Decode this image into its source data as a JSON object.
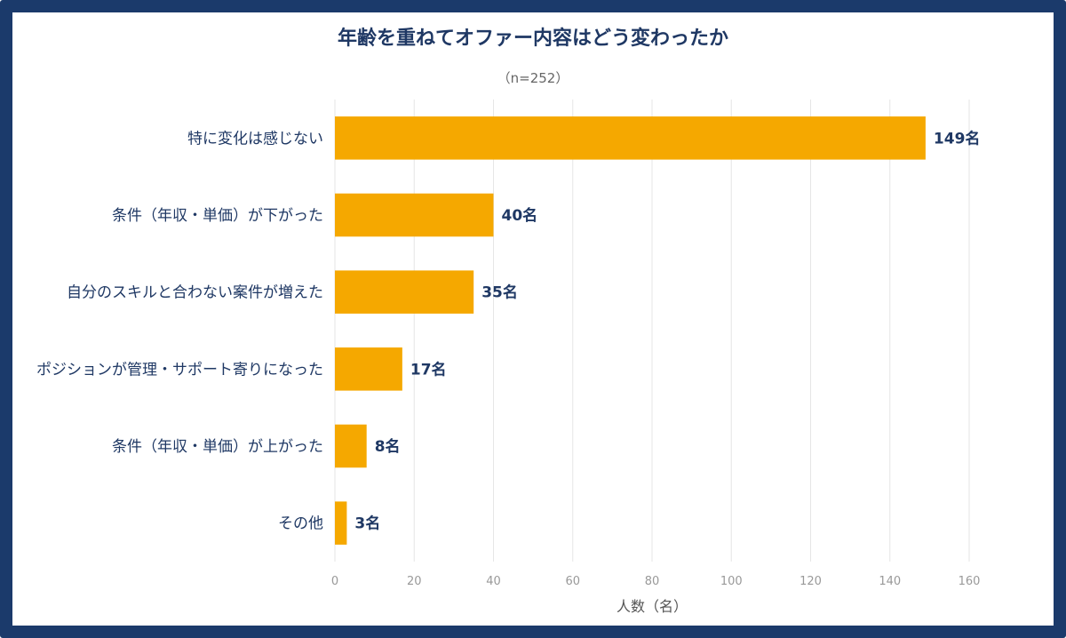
{
  "colors": {
    "frame": "#1b3a6b",
    "bar": "#f5a800",
    "title": "#1f3864",
    "grid": "#e6e6e6"
  },
  "chart_data": {
    "type": "bar",
    "orientation": "horizontal",
    "title": "年齢を重ねてオファー内容はどう変わったか",
    "subtitle": "（n=252）",
    "xlabel": "人数（名）",
    "ylabel": "",
    "xlim": [
      0,
      160
    ],
    "xticks": [
      0,
      20,
      40,
      60,
      80,
      100,
      120,
      140,
      160
    ],
    "grid": "vertical",
    "categories": [
      "特に変化は感じない",
      "条件（年収・単価）が下がった",
      "自分のスキルと合わない案件が増えた",
      "ポジションが管理・サポート寄りになった",
      "条件（年収・単価）が上がった",
      "その他"
    ],
    "values": [
      149,
      40,
      35,
      17,
      8,
      3
    ],
    "data_labels": [
      "149名",
      "40名",
      "35名",
      "17名",
      "8名",
      "3名"
    ]
  }
}
